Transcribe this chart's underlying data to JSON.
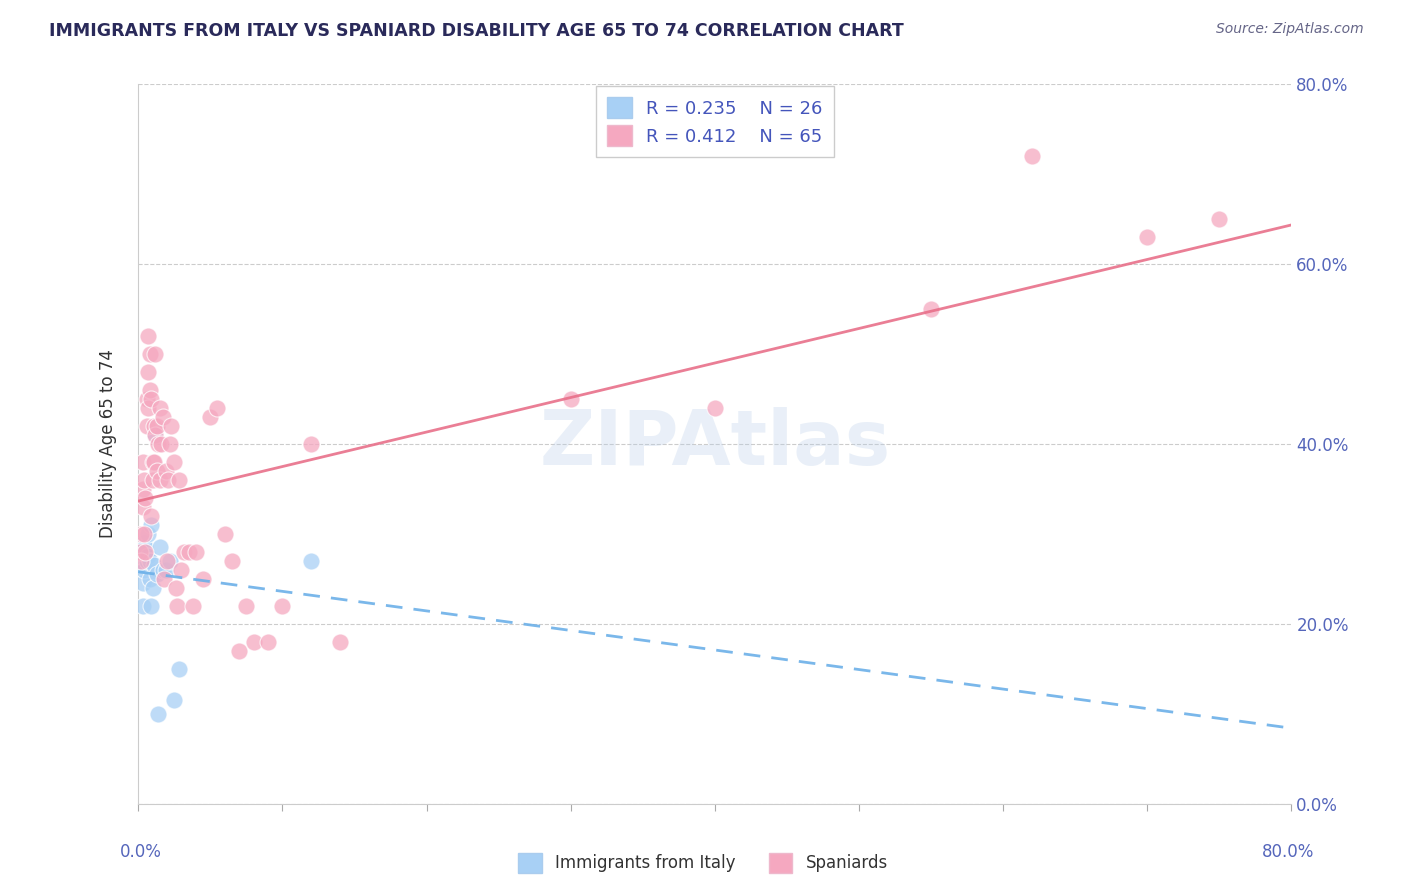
{
  "title": "IMMIGRANTS FROM ITALY VS SPANIARD DISABILITY AGE 65 TO 74 CORRELATION CHART",
  "source": "Source: ZipAtlas.com",
  "ylabel": "Disability Age 65 to 74",
  "legend_italy": "Immigrants from Italy",
  "legend_spaniards": "Spaniards",
  "R_italy": 0.235,
  "N_italy": 26,
  "R_spaniards": 0.412,
  "N_spaniards": 65,
  "color_italy": "#a8d0f5",
  "color_spaniards": "#f5a8c0",
  "watermark": "ZIPAtlas",
  "italy_x": [
    0.001,
    0.003,
    0.003,
    0.004,
    0.004,
    0.005,
    0.005,
    0.006,
    0.007,
    0.007,
    0.008,
    0.008,
    0.009,
    0.009,
    0.01,
    0.011,
    0.012,
    0.013,
    0.014,
    0.015,
    0.017,
    0.019,
    0.022,
    0.025,
    0.028,
    0.12
  ],
  "italy_y": [
    0.265,
    0.245,
    0.22,
    0.26,
    0.29,
    0.28,
    0.285,
    0.27,
    0.3,
    0.275,
    0.25,
    0.27,
    0.22,
    0.31,
    0.24,
    0.265,
    0.41,
    0.255,
    0.1,
    0.285,
    0.26,
    0.26,
    0.27,
    0.115,
    0.15,
    0.27
  ],
  "spaniard_x": [
    0.001,
    0.002,
    0.002,
    0.003,
    0.003,
    0.003,
    0.004,
    0.004,
    0.005,
    0.005,
    0.006,
    0.006,
    0.007,
    0.007,
    0.007,
    0.008,
    0.008,
    0.009,
    0.009,
    0.01,
    0.01,
    0.011,
    0.011,
    0.012,
    0.012,
    0.013,
    0.013,
    0.014,
    0.015,
    0.015,
    0.016,
    0.017,
    0.018,
    0.019,
    0.02,
    0.021,
    0.022,
    0.023,
    0.025,
    0.026,
    0.027,
    0.028,
    0.03,
    0.032,
    0.035,
    0.038,
    0.04,
    0.045,
    0.05,
    0.055,
    0.06,
    0.065,
    0.07,
    0.075,
    0.08,
    0.09,
    0.1,
    0.12,
    0.14,
    0.3,
    0.4,
    0.55,
    0.62,
    0.7,
    0.75
  ],
  "spaniard_y": [
    0.28,
    0.27,
    0.3,
    0.35,
    0.38,
    0.33,
    0.3,
    0.36,
    0.28,
    0.34,
    0.45,
    0.42,
    0.48,
    0.52,
    0.44,
    0.5,
    0.46,
    0.32,
    0.45,
    0.38,
    0.36,
    0.42,
    0.38,
    0.5,
    0.41,
    0.37,
    0.42,
    0.4,
    0.36,
    0.44,
    0.4,
    0.43,
    0.25,
    0.37,
    0.27,
    0.36,
    0.4,
    0.42,
    0.38,
    0.24,
    0.22,
    0.36,
    0.26,
    0.28,
    0.28,
    0.22,
    0.28,
    0.25,
    0.43,
    0.44,
    0.3,
    0.27,
    0.17,
    0.22,
    0.18,
    0.18,
    0.22,
    0.4,
    0.18,
    0.45,
    0.44,
    0.55,
    0.72,
    0.63,
    0.65
  ],
  "xlim": [
    0,
    0.8
  ],
  "ylim": [
    0,
    0.8
  ],
  "yticks": [
    0.0,
    0.2,
    0.4,
    0.6,
    0.8
  ],
  "ytick_labels": [
    "0.0%",
    "20.0%",
    "40.0%",
    "60.0%",
    "80.0%"
  ]
}
